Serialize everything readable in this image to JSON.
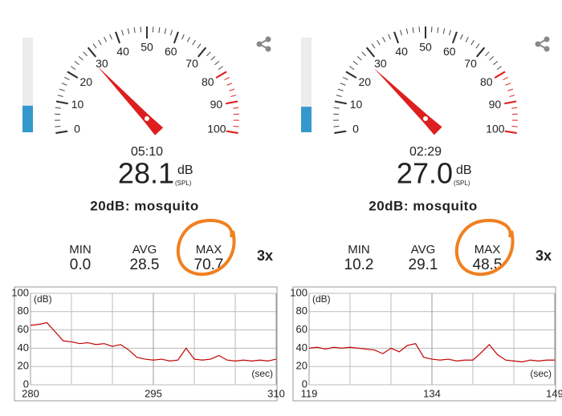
{
  "panels": [
    {
      "gauge": {
        "ticks": [
          0,
          10,
          20,
          30,
          40,
          50,
          60,
          70,
          80,
          90,
          100
        ],
        "red_from": 80
      },
      "time": "05:10",
      "reading": "28.1",
      "unit": "dB",
      "unit_note": "(SPL)",
      "reference": "20dB: mosquito",
      "stats": [
        {
          "label": "MIN",
          "value": "0.0"
        },
        {
          "label": "AVG",
          "value": "28.5"
        },
        {
          "label": "MAX",
          "value": "70.7"
        }
      ],
      "speed": "3x",
      "chart": {
        "y_label": "(dB)",
        "x_label": "(sec)",
        "ylim": [
          0,
          100
        ],
        "yticks": [
          0,
          20,
          40,
          60,
          80,
          100
        ],
        "xlim": [
          280,
          310
        ],
        "xticks": [
          280,
          295,
          310
        ],
        "color": "#c00000",
        "x": [
          280,
          281,
          282,
          283,
          284,
          285,
          286,
          287,
          288,
          289,
          290,
          291,
          292,
          293,
          294,
          295,
          296,
          297,
          298,
          299,
          300,
          301,
          302,
          303,
          304,
          305,
          306,
          307,
          308,
          309,
          310
        ],
        "values": [
          65,
          66,
          68,
          58,
          48,
          47,
          45,
          46,
          44,
          45,
          42,
          44,
          38,
          30,
          28,
          27,
          28,
          26,
          27,
          40,
          28,
          27,
          28,
          32,
          27,
          26,
          27,
          26,
          27,
          26,
          28
        ]
      }
    },
    {
      "gauge": {
        "ticks": [
          0,
          10,
          20,
          30,
          40,
          50,
          60,
          70,
          80,
          90,
          100
        ],
        "red_from": 80
      },
      "time": "02:29",
      "reading": "27.0",
      "unit": "dB",
      "unit_note": "(SPL)",
      "reference": "20dB: mosquito",
      "stats": [
        {
          "label": "MIN",
          "value": "10.2"
        },
        {
          "label": "AVG",
          "value": "29.1"
        },
        {
          "label": "MAX",
          "value": "48.5"
        }
      ],
      "speed": "3x",
      "chart": {
        "y_label": "(dB)",
        "x_label": "(sec)",
        "ylim": [
          0,
          100
        ],
        "yticks": [
          0,
          20,
          40,
          60,
          80,
          100
        ],
        "xlim": [
          119,
          149
        ],
        "xticks": [
          119,
          134,
          149
        ],
        "color": "#c00000",
        "x": [
          119,
          120,
          121,
          122,
          123,
          124,
          125,
          126,
          127,
          128,
          129,
          130,
          131,
          132,
          133,
          134,
          135,
          136,
          137,
          138,
          139,
          140,
          141,
          142,
          143,
          144,
          145,
          146,
          147,
          148,
          149
        ],
        "values": [
          40,
          41,
          39,
          41,
          40,
          41,
          40,
          39,
          38,
          34,
          40,
          36,
          43,
          45,
          30,
          28,
          27,
          28,
          26,
          27,
          27,
          35,
          44,
          33,
          27,
          26,
          25,
          27,
          26,
          27,
          27
        ]
      }
    }
  ]
}
